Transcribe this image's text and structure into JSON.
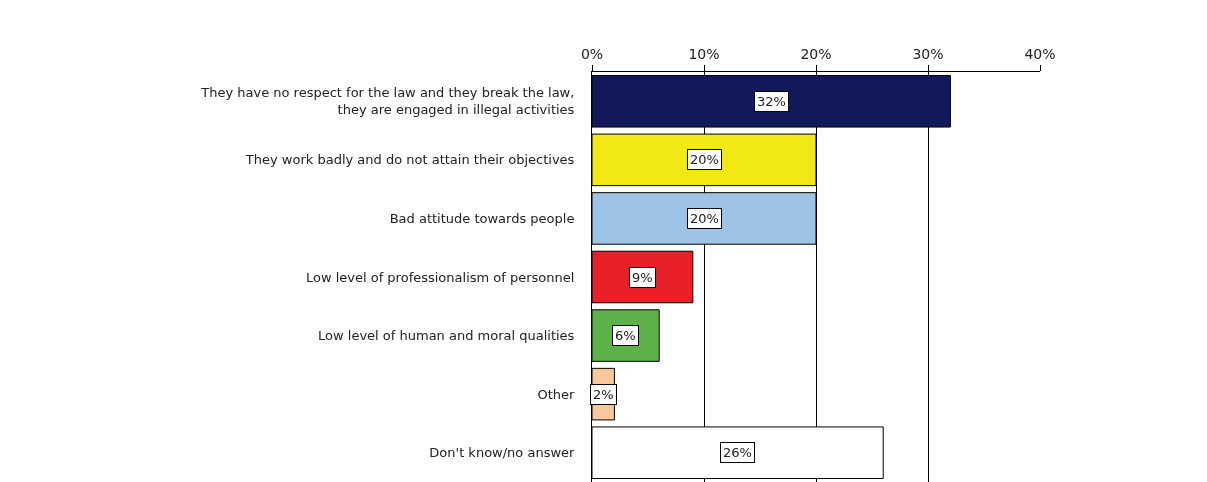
{
  "chart_data": {
    "type": "bar",
    "orientation": "horizontal",
    "categories": [
      "They have no respect for the law and they break the law,\nthey are engaged in illegal activities",
      "They work badly and do not attain their objectives",
      "Bad attitude towards people",
      "Low level of professionalism of personnel",
      "Low level of human and moral qualities",
      "Other",
      "Don't know/no answer"
    ],
    "values": [
      32,
      20,
      20,
      9,
      6,
      2,
      26
    ],
    "colors": [
      "#121a5c",
      "#f2e814",
      "#9dc3e6",
      "#e8202a",
      "#5cb246",
      "#f8c89a",
      "#ffffff"
    ],
    "value_labels": [
      "32%",
      "20%",
      "20%",
      "9%",
      "6%",
      "2%",
      "26%"
    ],
    "xlim": [
      0,
      40
    ],
    "xticks": [
      {
        "value": 0,
        "label": "0%"
      },
      {
        "value": 10,
        "label": "10%"
      },
      {
        "value": 20,
        "label": "20%"
      },
      {
        "value": 30,
        "label": "30%"
      },
      {
        "value": 40,
        "label": "40%"
      }
    ],
    "grid": "x",
    "legend": false
  }
}
